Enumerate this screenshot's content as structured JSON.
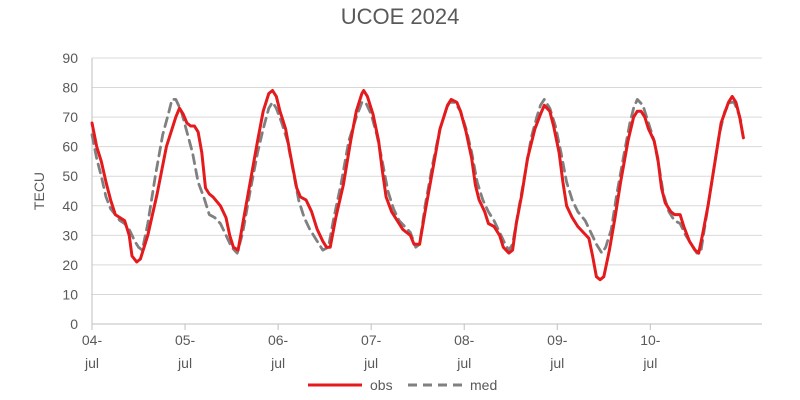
{
  "chart_data": {
    "type": "line",
    "title": "UCOE 2024",
    "xlabel": "",
    "ylabel": "TECU",
    "ylim": [
      0,
      90
    ],
    "yticks": [
      0,
      10,
      20,
      30,
      40,
      50,
      60,
      70,
      80,
      90
    ],
    "xlim_days": [
      0,
      7.2
    ],
    "x_tick_labels": [
      [
        "04-",
        "jul"
      ],
      [
        "05-",
        "jul"
      ],
      [
        "06-",
        "jul"
      ],
      [
        "07-",
        "jul"
      ],
      [
        "08-",
        "jul"
      ],
      [
        "09-",
        "jul"
      ],
      [
        "10-",
        "jul"
      ]
    ],
    "grid": "horizontal",
    "legend_position": "bottom",
    "series": [
      {
        "name": "obs",
        "color": "#e41a1c",
        "style": "solid",
        "points": [
          [
            0.0,
            68
          ],
          [
            0.05,
            60
          ],
          [
            0.1,
            55
          ],
          [
            0.15,
            48
          ],
          [
            0.2,
            42
          ],
          [
            0.25,
            37
          ],
          [
            0.3,
            36
          ],
          [
            0.35,
            35
          ],
          [
            0.4,
            30
          ],
          [
            0.43,
            23
          ],
          [
            0.48,
            21
          ],
          [
            0.52,
            22
          ],
          [
            0.6,
            30
          ],
          [
            0.7,
            44
          ],
          [
            0.8,
            60
          ],
          [
            0.9,
            70
          ],
          [
            0.94,
            73
          ],
          [
            0.98,
            71
          ],
          [
            1.02,
            68
          ],
          [
            1.06,
            67
          ],
          [
            1.1,
            67
          ],
          [
            1.14,
            65
          ],
          [
            1.18,
            58
          ],
          [
            1.22,
            46
          ],
          [
            1.26,
            44
          ],
          [
            1.3,
            43
          ],
          [
            1.38,
            40
          ],
          [
            1.44,
            36
          ],
          [
            1.48,
            30
          ],
          [
            1.52,
            26
          ],
          [
            1.57,
            25
          ],
          [
            1.62,
            34
          ],
          [
            1.7,
            48
          ],
          [
            1.78,
            62
          ],
          [
            1.84,
            72
          ],
          [
            1.9,
            78
          ],
          [
            1.94,
            79
          ],
          [
            1.98,
            77
          ],
          [
            2.02,
            72
          ],
          [
            2.08,
            66
          ],
          [
            2.14,
            56
          ],
          [
            2.2,
            46
          ],
          [
            2.24,
            43
          ],
          [
            2.3,
            42
          ],
          [
            2.36,
            38
          ],
          [
            2.42,
            32
          ],
          [
            2.48,
            28
          ],
          [
            2.52,
            26
          ],
          [
            2.56,
            26
          ],
          [
            2.62,
            36
          ],
          [
            2.7,
            47
          ],
          [
            2.78,
            62
          ],
          [
            2.84,
            72
          ],
          [
            2.9,
            78
          ],
          [
            2.92,
            79
          ],
          [
            2.96,
            77
          ],
          [
            3.02,
            71
          ],
          [
            3.08,
            62
          ],
          [
            3.12,
            52
          ],
          [
            3.16,
            43
          ],
          [
            3.22,
            38
          ],
          [
            3.28,
            35
          ],
          [
            3.34,
            32
          ],
          [
            3.42,
            30
          ],
          [
            3.46,
            27
          ],
          [
            3.52,
            27
          ],
          [
            3.58,
            38
          ],
          [
            3.66,
            52
          ],
          [
            3.74,
            66
          ],
          [
            3.82,
            74
          ],
          [
            3.86,
            76
          ],
          [
            3.92,
            75
          ],
          [
            3.96,
            72
          ],
          [
            4.02,
            65
          ],
          [
            4.08,
            56
          ],
          [
            4.12,
            47
          ],
          [
            4.16,
            42
          ],
          [
            4.22,
            38
          ],
          [
            4.26,
            34
          ],
          [
            4.32,
            33
          ],
          [
            4.38,
            30
          ],
          [
            4.42,
            26
          ],
          [
            4.48,
            24
          ],
          [
            4.52,
            25
          ],
          [
            4.56,
            34
          ],
          [
            4.62,
            44
          ],
          [
            4.68,
            56
          ],
          [
            4.76,
            66
          ],
          [
            4.82,
            71
          ],
          [
            4.86,
            74
          ],
          [
            4.92,
            72
          ],
          [
            4.96,
            67
          ],
          [
            5.02,
            58
          ],
          [
            5.06,
            48
          ],
          [
            5.1,
            40
          ],
          [
            5.16,
            36
          ],
          [
            5.22,
            33
          ],
          [
            5.28,
            31
          ],
          [
            5.34,
            29
          ],
          [
            5.38,
            23
          ],
          [
            5.42,
            16
          ],
          [
            5.46,
            15
          ],
          [
            5.5,
            16
          ],
          [
            5.56,
            25
          ],
          [
            5.62,
            36
          ],
          [
            5.68,
            48
          ],
          [
            5.76,
            62
          ],
          [
            5.82,
            70
          ],
          [
            5.86,
            72
          ],
          [
            5.9,
            72
          ],
          [
            5.94,
            70
          ],
          [
            5.98,
            66
          ],
          [
            6.04,
            62
          ],
          [
            6.08,
            56
          ],
          [
            6.12,
            46
          ],
          [
            6.16,
            41
          ],
          [
            6.22,
            38
          ],
          [
            6.26,
            37
          ],
          [
            6.32,
            37
          ],
          [
            6.36,
            33
          ],
          [
            6.42,
            28
          ],
          [
            6.48,
            25
          ],
          [
            6.52,
            24
          ],
          [
            6.56,
            30
          ],
          [
            6.62,
            40
          ],
          [
            6.7,
            56
          ],
          [
            6.76,
            68
          ],
          [
            6.84,
            75
          ],
          [
            6.88,
            77
          ],
          [
            6.92,
            75
          ],
          [
            6.96,
            70
          ],
          [
            7.0,
            63
          ]
        ]
      },
      {
        "name": "med",
        "color": "#808080",
        "style": "dashed",
        "points": [
          [
            0.0,
            64
          ],
          [
            0.05,
            56
          ],
          [
            0.1,
            50
          ],
          [
            0.15,
            43
          ],
          [
            0.2,
            39
          ],
          [
            0.25,
            37
          ],
          [
            0.3,
            35
          ],
          [
            0.35,
            34
          ],
          [
            0.4,
            32
          ],
          [
            0.46,
            28
          ],
          [
            0.5,
            26
          ],
          [
            0.54,
            25
          ],
          [
            0.6,
            34
          ],
          [
            0.68,
            50
          ],
          [
            0.76,
            64
          ],
          [
            0.82,
            71
          ],
          [
            0.86,
            76
          ],
          [
            0.9,
            76
          ],
          [
            0.96,
            72
          ],
          [
            1.02,
            65
          ],
          [
            1.08,
            58
          ],
          [
            1.14,
            48
          ],
          [
            1.2,
            43
          ],
          [
            1.26,
            37
          ],
          [
            1.32,
            36
          ],
          [
            1.38,
            34
          ],
          [
            1.44,
            30
          ],
          [
            1.5,
            26
          ],
          [
            1.56,
            24
          ],
          [
            1.62,
            31
          ],
          [
            1.7,
            45
          ],
          [
            1.78,
            58
          ],
          [
            1.84,
            66
          ],
          [
            1.9,
            73
          ],
          [
            1.94,
            75
          ],
          [
            1.98,
            73
          ],
          [
            2.04,
            68
          ],
          [
            2.1,
            62
          ],
          [
            2.16,
            52
          ],
          [
            2.22,
            42
          ],
          [
            2.28,
            36
          ],
          [
            2.34,
            32
          ],
          [
            2.42,
            28
          ],
          [
            2.48,
            25
          ],
          [
            2.54,
            26
          ],
          [
            2.6,
            36
          ],
          [
            2.68,
            48
          ],
          [
            2.76,
            62
          ],
          [
            2.84,
            70
          ],
          [
            2.9,
            75
          ],
          [
            2.94,
            75
          ],
          [
            3.0,
            71
          ],
          [
            3.06,
            64
          ],
          [
            3.12,
            55
          ],
          [
            3.18,
            45
          ],
          [
            3.24,
            39
          ],
          [
            3.3,
            35
          ],
          [
            3.36,
            33
          ],
          [
            3.42,
            31
          ],
          [
            3.48,
            26
          ],
          [
            3.52,
            27
          ],
          [
            3.58,
            40
          ],
          [
            3.66,
            54
          ],
          [
            3.74,
            66
          ],
          [
            3.8,
            72
          ],
          [
            3.84,
            75
          ],
          [
            3.9,
            75
          ],
          [
            3.96,
            72
          ],
          [
            4.02,
            66
          ],
          [
            4.08,
            58
          ],
          [
            4.14,
            48
          ],
          [
            4.2,
            42
          ],
          [
            4.26,
            38
          ],
          [
            4.32,
            35
          ],
          [
            4.38,
            31
          ],
          [
            4.44,
            27
          ],
          [
            4.48,
            25
          ],
          [
            4.52,
            27
          ],
          [
            4.58,
            38
          ],
          [
            4.66,
            52
          ],
          [
            4.72,
            63
          ],
          [
            4.78,
            70
          ],
          [
            4.82,
            74
          ],
          [
            4.86,
            76
          ],
          [
            4.92,
            73
          ],
          [
            4.98,
            67
          ],
          [
            5.04,
            58
          ],
          [
            5.1,
            48
          ],
          [
            5.16,
            42
          ],
          [
            5.22,
            38
          ],
          [
            5.3,
            35
          ],
          [
            5.36,
            31
          ],
          [
            5.42,
            27
          ],
          [
            5.48,
            24
          ],
          [
            5.52,
            26
          ],
          [
            5.58,
            32
          ],
          [
            5.64,
            44
          ],
          [
            5.72,
            58
          ],
          [
            5.78,
            68
          ],
          [
            5.82,
            73
          ],
          [
            5.86,
            76
          ],
          [
            5.92,
            74
          ],
          [
            5.98,
            68
          ],
          [
            6.04,
            62
          ],
          [
            6.1,
            52
          ],
          [
            6.14,
            44
          ],
          [
            6.2,
            38
          ],
          [
            6.26,
            35
          ],
          [
            6.32,
            34
          ],
          [
            6.38,
            30
          ],
          [
            6.44,
            27
          ],
          [
            6.5,
            24
          ],
          [
            6.54,
            24
          ],
          [
            6.6,
            36
          ],
          [
            6.68,
            52
          ],
          [
            6.74,
            64
          ],
          [
            6.8,
            72
          ],
          [
            6.86,
            75
          ],
          [
            6.9,
            75
          ],
          [
            6.94,
            72
          ],
          [
            6.98,
            68
          ]
        ]
      }
    ]
  }
}
